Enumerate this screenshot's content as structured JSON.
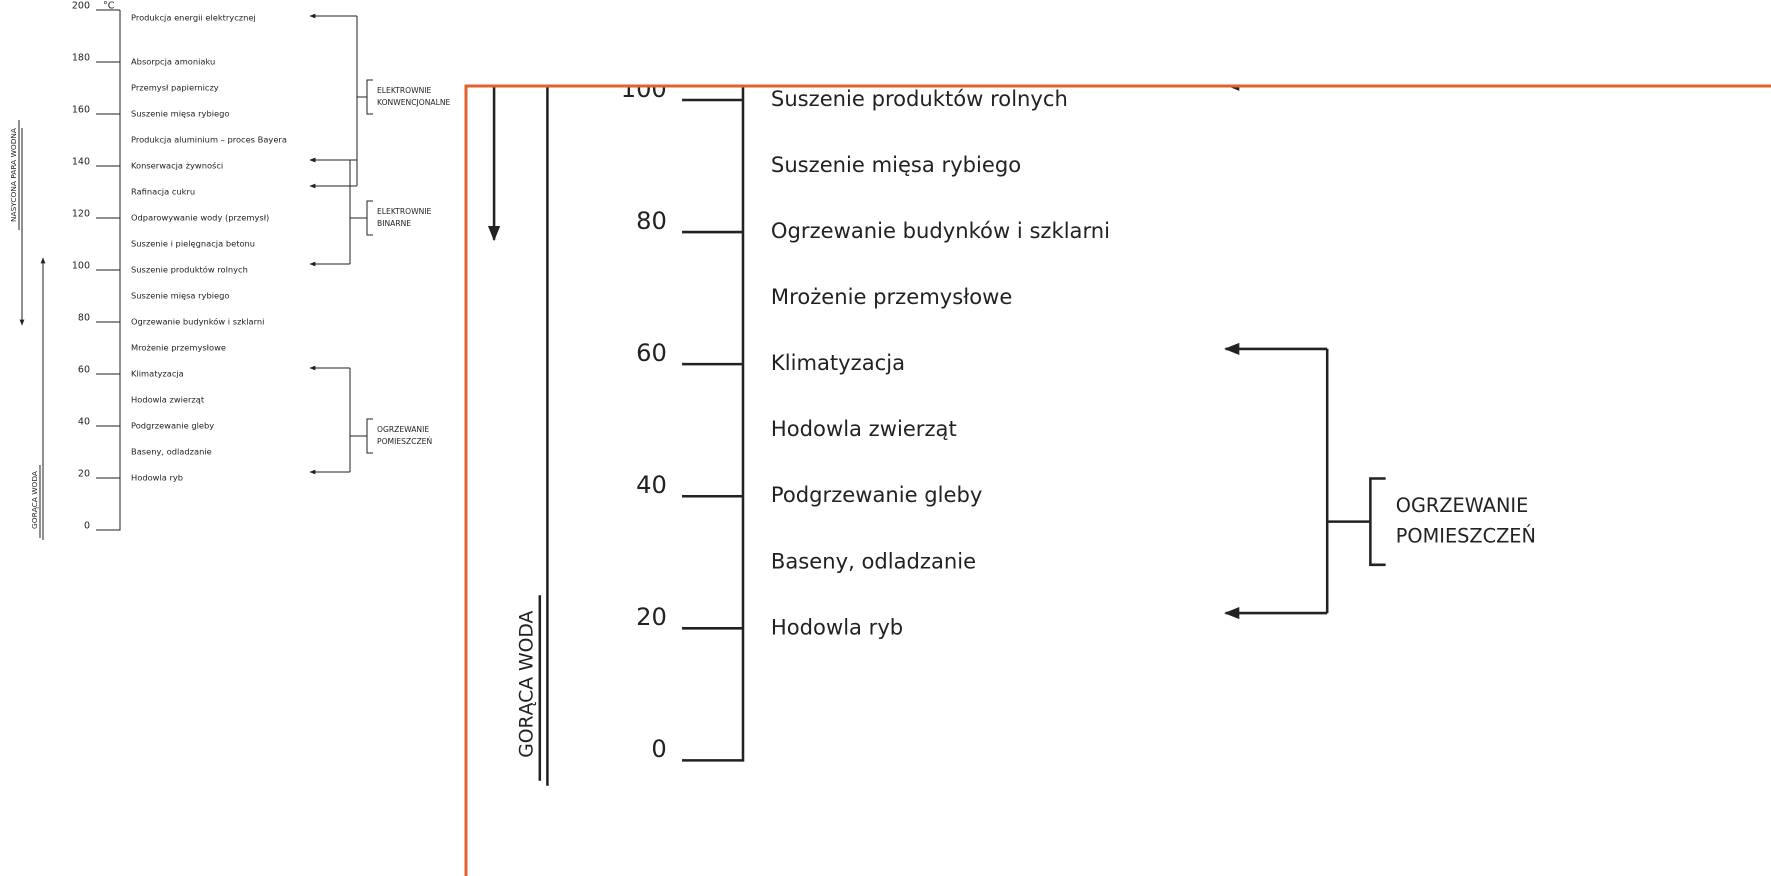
{
  "scale": {
    "unit": "°C",
    "ticks": [
      200,
      180,
      160,
      140,
      120,
      100,
      80,
      60,
      40,
      20,
      0
    ]
  },
  "applications": [
    "Produkcja energii elektrycznej",
    "Absorpcja amoniaku",
    "Przemysł papierniczy",
    "Suszenie mięsa rybiego",
    "Produkcja aluminium – proces Bayera",
    "Konserwacja żywności",
    "Rafinacja cukru",
    "Odparowywanie wody (przemysł)",
    "Suszenie i pielęgnacja betonu",
    "Suszenie produktów rolnych",
    "Suszenie mięsa rybiego",
    "Ogrzewanie budynków i szklarni",
    "Mrożenie przemysłowe",
    "Klimatyzacja",
    "Hodowla zwierząt",
    "Podgrzewanie gleby",
    "Baseny, odladzanie",
    "Hodowla ryb"
  ],
  "groups": [
    {
      "label": [
        "ELEKTROWNIE",
        "KONWENCJONALNE"
      ]
    },
    {
      "label": [
        "ELEKTROWNIE",
        "BINARNE"
      ]
    },
    {
      "label": [
        "OGRZEWANIE",
        "POMIESZCZEŃ"
      ]
    }
  ],
  "side_labels": {
    "steam": "NASYCONA PARA WODNA",
    "water": "GORĄCA WODA"
  }
}
